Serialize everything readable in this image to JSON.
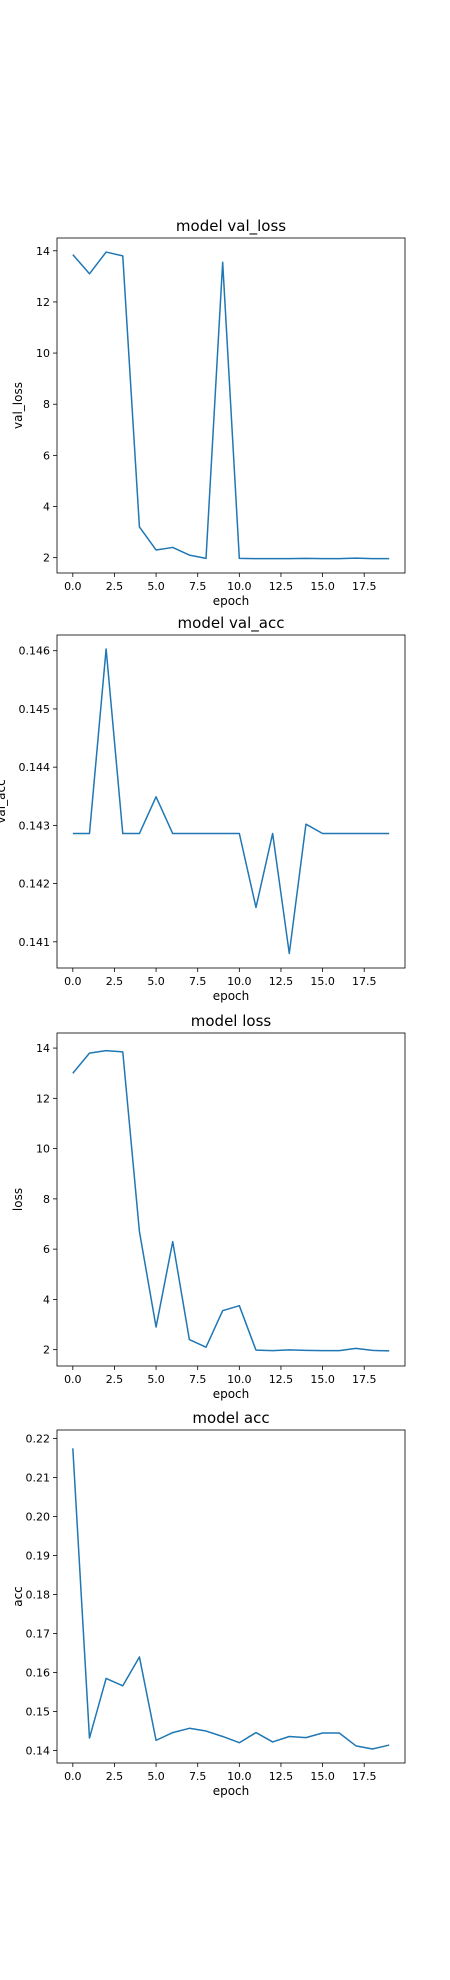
{
  "figure": {
    "background": "#ffffff",
    "line_color": "#1f77b4"
  },
  "chart_data": [
    {
      "type": "line",
      "title": "model val_loss",
      "xlabel": "epoch",
      "ylabel": "val_loss",
      "xlim": [
        -0.95,
        19.95
      ],
      "ylim": [
        1.4,
        14.5
      ],
      "xticks": [
        0.0,
        2.5,
        5.0,
        7.5,
        10.0,
        12.5,
        15.0,
        17.5
      ],
      "xtick_labels": [
        "0.0",
        "2.5",
        "5.0",
        "7.5",
        "10.0",
        "12.5",
        "15.0",
        "17.5"
      ],
      "yticks": [
        2,
        4,
        6,
        8,
        10,
        12,
        14
      ],
      "ytick_labels": [
        "2",
        "4",
        "6",
        "8",
        "10",
        "12",
        "14"
      ],
      "grid": false,
      "series": [
        {
          "x": [
            0,
            1,
            2,
            3,
            4,
            5,
            6,
            7,
            8,
            9,
            10,
            11,
            12,
            13,
            14,
            15,
            16,
            17,
            18,
            19
          ],
          "values": [
            13.85,
            13.1,
            13.95,
            13.8,
            3.2,
            2.3,
            2.4,
            2.1,
            1.97,
            13.55,
            1.97,
            1.96,
            1.96,
            1.96,
            1.97,
            1.96,
            1.96,
            1.98,
            1.96,
            1.96
          ]
        }
      ]
    },
    {
      "type": "line",
      "title": "model val_acc",
      "xlabel": "epoch",
      "ylabel": "val_acc",
      "xlim": [
        -0.95,
        19.95
      ],
      "ylim": [
        0.14055,
        0.14627
      ],
      "xticks": [
        0.0,
        2.5,
        5.0,
        7.5,
        10.0,
        12.5,
        15.0,
        17.5
      ],
      "xtick_labels": [
        "0.0",
        "2.5",
        "5.0",
        "7.5",
        "10.0",
        "12.5",
        "15.0",
        "17.5"
      ],
      "yticks": [
        0.141,
        0.142,
        0.143,
        0.144,
        0.145,
        0.146
      ],
      "ytick_labels": [
        "0.141",
        "0.142",
        "0.143",
        "0.144",
        "0.145",
        "0.146"
      ],
      "grid": false,
      "series": [
        {
          "x": [
            0,
            1,
            2,
            3,
            4,
            5,
            6,
            7,
            8,
            9,
            10,
            11,
            12,
            13,
            14,
            15,
            16,
            17,
            18,
            19
          ],
          "values": [
            0.14286,
            0.14286,
            0.14603,
            0.14286,
            0.14286,
            0.14349,
            0.14286,
            0.14286,
            0.14286,
            0.14286,
            0.14286,
            0.14159,
            0.14286,
            0.1408,
            0.14302,
            0.14286,
            0.14286,
            0.14286,
            0.14286,
            0.14286
          ]
        }
      ]
    },
    {
      "type": "line",
      "title": "model loss",
      "xlabel": "epoch",
      "ylabel": "loss",
      "xlim": [
        -0.95,
        19.95
      ],
      "ylim": [
        1.35,
        14.6
      ],
      "xticks": [
        0.0,
        2.5,
        5.0,
        7.5,
        10.0,
        12.5,
        15.0,
        17.5
      ],
      "xtick_labels": [
        "0.0",
        "2.5",
        "5.0",
        "7.5",
        "10.0",
        "12.5",
        "15.0",
        "17.5"
      ],
      "yticks": [
        2,
        4,
        6,
        8,
        10,
        12,
        14
      ],
      "ytick_labels": [
        "2",
        "4",
        "6",
        "8",
        "10",
        "12",
        "14"
      ],
      "grid": false,
      "series": [
        {
          "x": [
            0,
            1,
            2,
            3,
            4,
            5,
            6,
            7,
            8,
            9,
            10,
            11,
            12,
            13,
            14,
            15,
            16,
            17,
            18,
            19
          ],
          "values": [
            13.0,
            13.8,
            13.9,
            13.85,
            6.7,
            2.9,
            6.3,
            2.4,
            2.1,
            3.55,
            3.75,
            1.98,
            1.96,
            1.99,
            1.97,
            1.96,
            1.96,
            2.05,
            1.97,
            1.95
          ]
        }
      ]
    },
    {
      "type": "line",
      "title": "model acc",
      "xlabel": "epoch",
      "ylabel": "acc",
      "xlim": [
        -0.95,
        19.95
      ],
      "ylim": [
        0.1368,
        0.2222
      ],
      "xticks": [
        0.0,
        2.5,
        5.0,
        7.5,
        10.0,
        12.5,
        15.0,
        17.5
      ],
      "xtick_labels": [
        "0.0",
        "2.5",
        "5.0",
        "7.5",
        "10.0",
        "12.5",
        "15.0",
        "17.5"
      ],
      "yticks": [
        0.14,
        0.15,
        0.16,
        0.17,
        0.18,
        0.19,
        0.2,
        0.21,
        0.22
      ],
      "ytick_labels": [
        "0.14",
        "0.15",
        "0.16",
        "0.17",
        "0.18",
        "0.19",
        "0.20",
        "0.21",
        "0.22"
      ],
      "grid": false,
      "series": [
        {
          "x": [
            0,
            1,
            2,
            3,
            4,
            5,
            6,
            7,
            8,
            9,
            10,
            11,
            12,
            13,
            14,
            15,
            16,
            17,
            18,
            19
          ],
          "values": [
            0.2175,
            0.1432,
            0.1585,
            0.1566,
            0.164,
            0.1426,
            0.1446,
            0.1457,
            0.145,
            0.1436,
            0.142,
            0.1446,
            0.1422,
            0.1436,
            0.1433,
            0.1445,
            0.1445,
            0.1412,
            0.1404,
            0.1414
          ]
        }
      ]
    }
  ]
}
